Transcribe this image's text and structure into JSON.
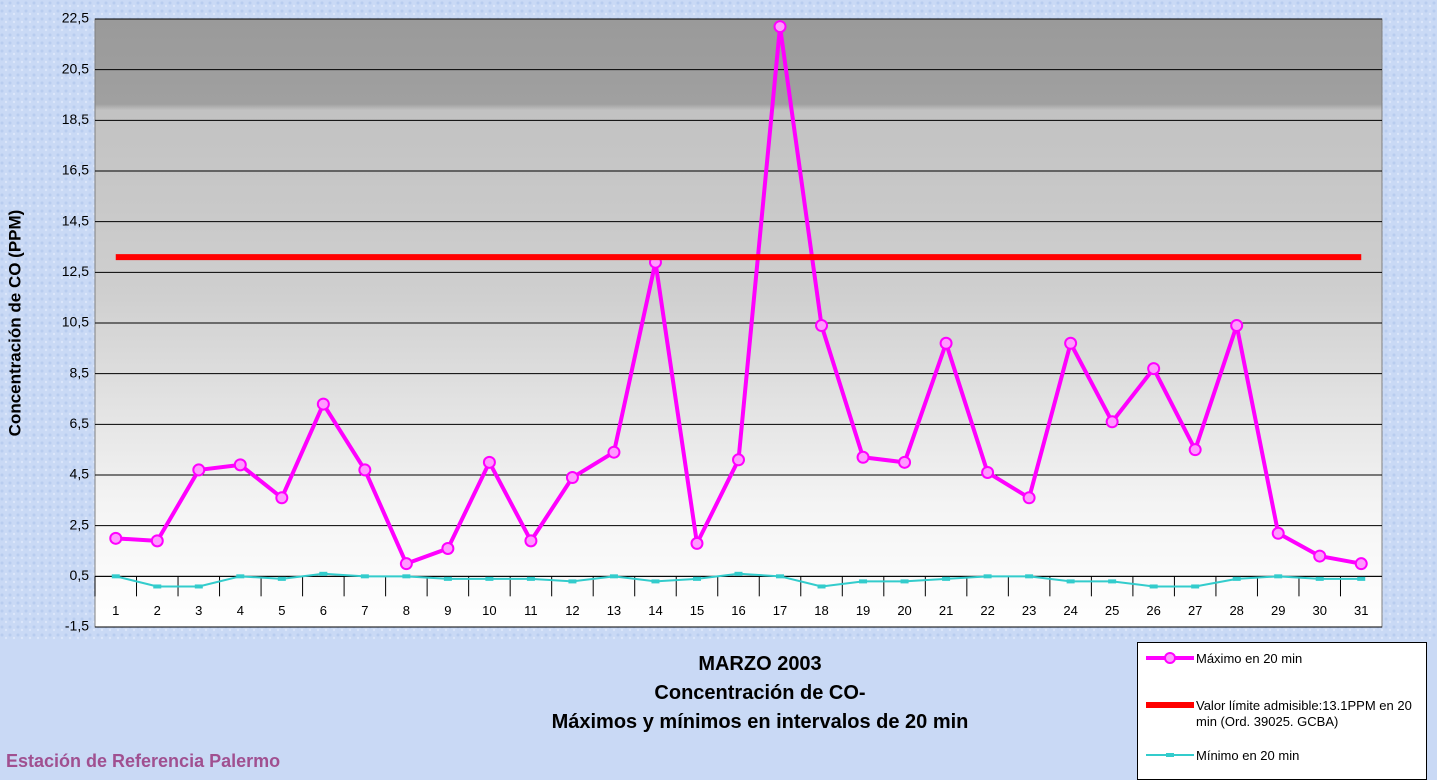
{
  "chart_data": {
    "type": "line",
    "title_lines": [
      "MARZO 2003",
      "Concentración de CO-",
      "Máximos y mínimos en intervalos de 20 min"
    ],
    "footer": "Estación de Referencia Palermo",
    "y_label": "Concentración de CO (PPM)",
    "categories": [
      "1",
      "2",
      "3",
      "4",
      "5",
      "6",
      "7",
      "8",
      "9",
      "10",
      "11",
      "12",
      "13",
      "14",
      "15",
      "16",
      "17",
      "18",
      "19",
      "20",
      "21",
      "22",
      "23",
      "24",
      "25",
      "26",
      "27",
      "28",
      "29",
      "30",
      "31"
    ],
    "series": [
      {
        "name": "Máximo en 20 min",
        "color": "#ff00ff",
        "marker": "circle",
        "values": [
          2.0,
          1.9,
          4.7,
          4.9,
          3.6,
          7.3,
          4.7,
          1.0,
          1.6,
          5.0,
          1.9,
          4.4,
          5.4,
          12.9,
          1.8,
          5.1,
          22.2,
          10.4,
          5.2,
          5.0,
          9.7,
          4.6,
          3.6,
          9.7,
          6.6,
          8.7,
          5.5,
          10.4,
          2.2,
          1.3,
          1.0
        ]
      },
      {
        "name": "Valor límite admisible:13.1PPM en 20 min (Ord. 39025. GCBA)",
        "color": "#ff0000",
        "marker": "none",
        "values": [
          13.1,
          13.1,
          13.1,
          13.1,
          13.1,
          13.1,
          13.1,
          13.1,
          13.1,
          13.1,
          13.1,
          13.1,
          13.1,
          13.1,
          13.1,
          13.1,
          13.1,
          13.1,
          13.1,
          13.1,
          13.1,
          13.1,
          13.1,
          13.1,
          13.1,
          13.1,
          13.1,
          13.1,
          13.1,
          13.1,
          13.1
        ]
      },
      {
        "name": "Mínimo en 20 min",
        "color": "#33cccc",
        "marker": "square",
        "values": [
          0.5,
          0.1,
          0.1,
          0.5,
          0.4,
          0.6,
          0.5,
          0.5,
          0.4,
          0.4,
          0.4,
          0.3,
          0.5,
          0.3,
          0.4,
          0.6,
          0.5,
          0.1,
          0.3,
          0.3,
          0.4,
          0.5,
          0.5,
          0.3,
          0.3,
          0.1,
          0.1,
          0.4,
          0.5,
          0.4,
          0.4
        ]
      }
    ],
    "ylim": [
      -1.5,
      22.5
    ],
    "yticks": [
      {
        "value": -1.5,
        "label": "-1,5"
      },
      {
        "value": 0.5,
        "label": "0,5"
      },
      {
        "value": 2.5,
        "label": "2,5"
      },
      {
        "value": 4.5,
        "label": "4,5"
      },
      {
        "value": 6.5,
        "label": "6,5"
      },
      {
        "value": 8.5,
        "label": "8,5"
      },
      {
        "value": 10.5,
        "label": "10,5"
      },
      {
        "value": 12.5,
        "label": "12,5"
      },
      {
        "value": 14.5,
        "label": "14,5"
      },
      {
        "value": 16.5,
        "label": "16,5"
      },
      {
        "value": 18.5,
        "label": "18,5"
      },
      {
        "value": 20.5,
        "label": "20,5"
      },
      {
        "value": 22.5,
        "label": "22,5"
      }
    ],
    "category_axis_at": {
      "value": 0.5,
      "label": "0,5"
    },
    "grid": true
  }
}
